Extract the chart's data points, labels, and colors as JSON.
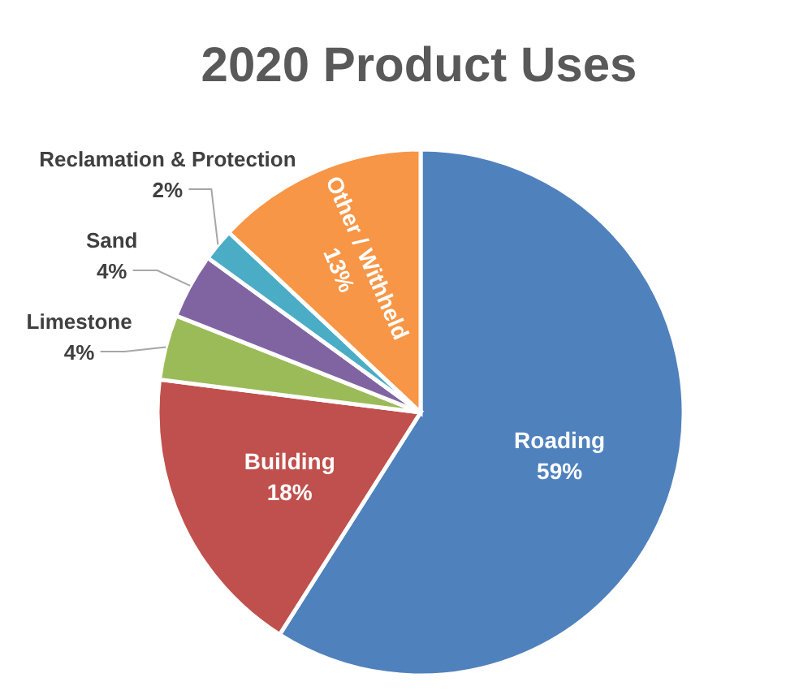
{
  "chart_data": {
    "type": "pie",
    "title": "2020 Product Uses",
    "categories": [
      "Roading",
      "Building",
      "Limestone",
      "Sand",
      "Reclamation & Protection",
      "Other / Withheld"
    ],
    "values": [
      59,
      18,
      4,
      4,
      2,
      13
    ],
    "colors": [
      "#4f81bd",
      "#c0504d",
      "#9bbb59",
      "#8064a2",
      "#4bacc6",
      "#f79646"
    ],
    "value_labels": [
      "59%",
      "18%",
      "4%",
      "4%",
      "2%",
      "13%"
    ]
  }
}
